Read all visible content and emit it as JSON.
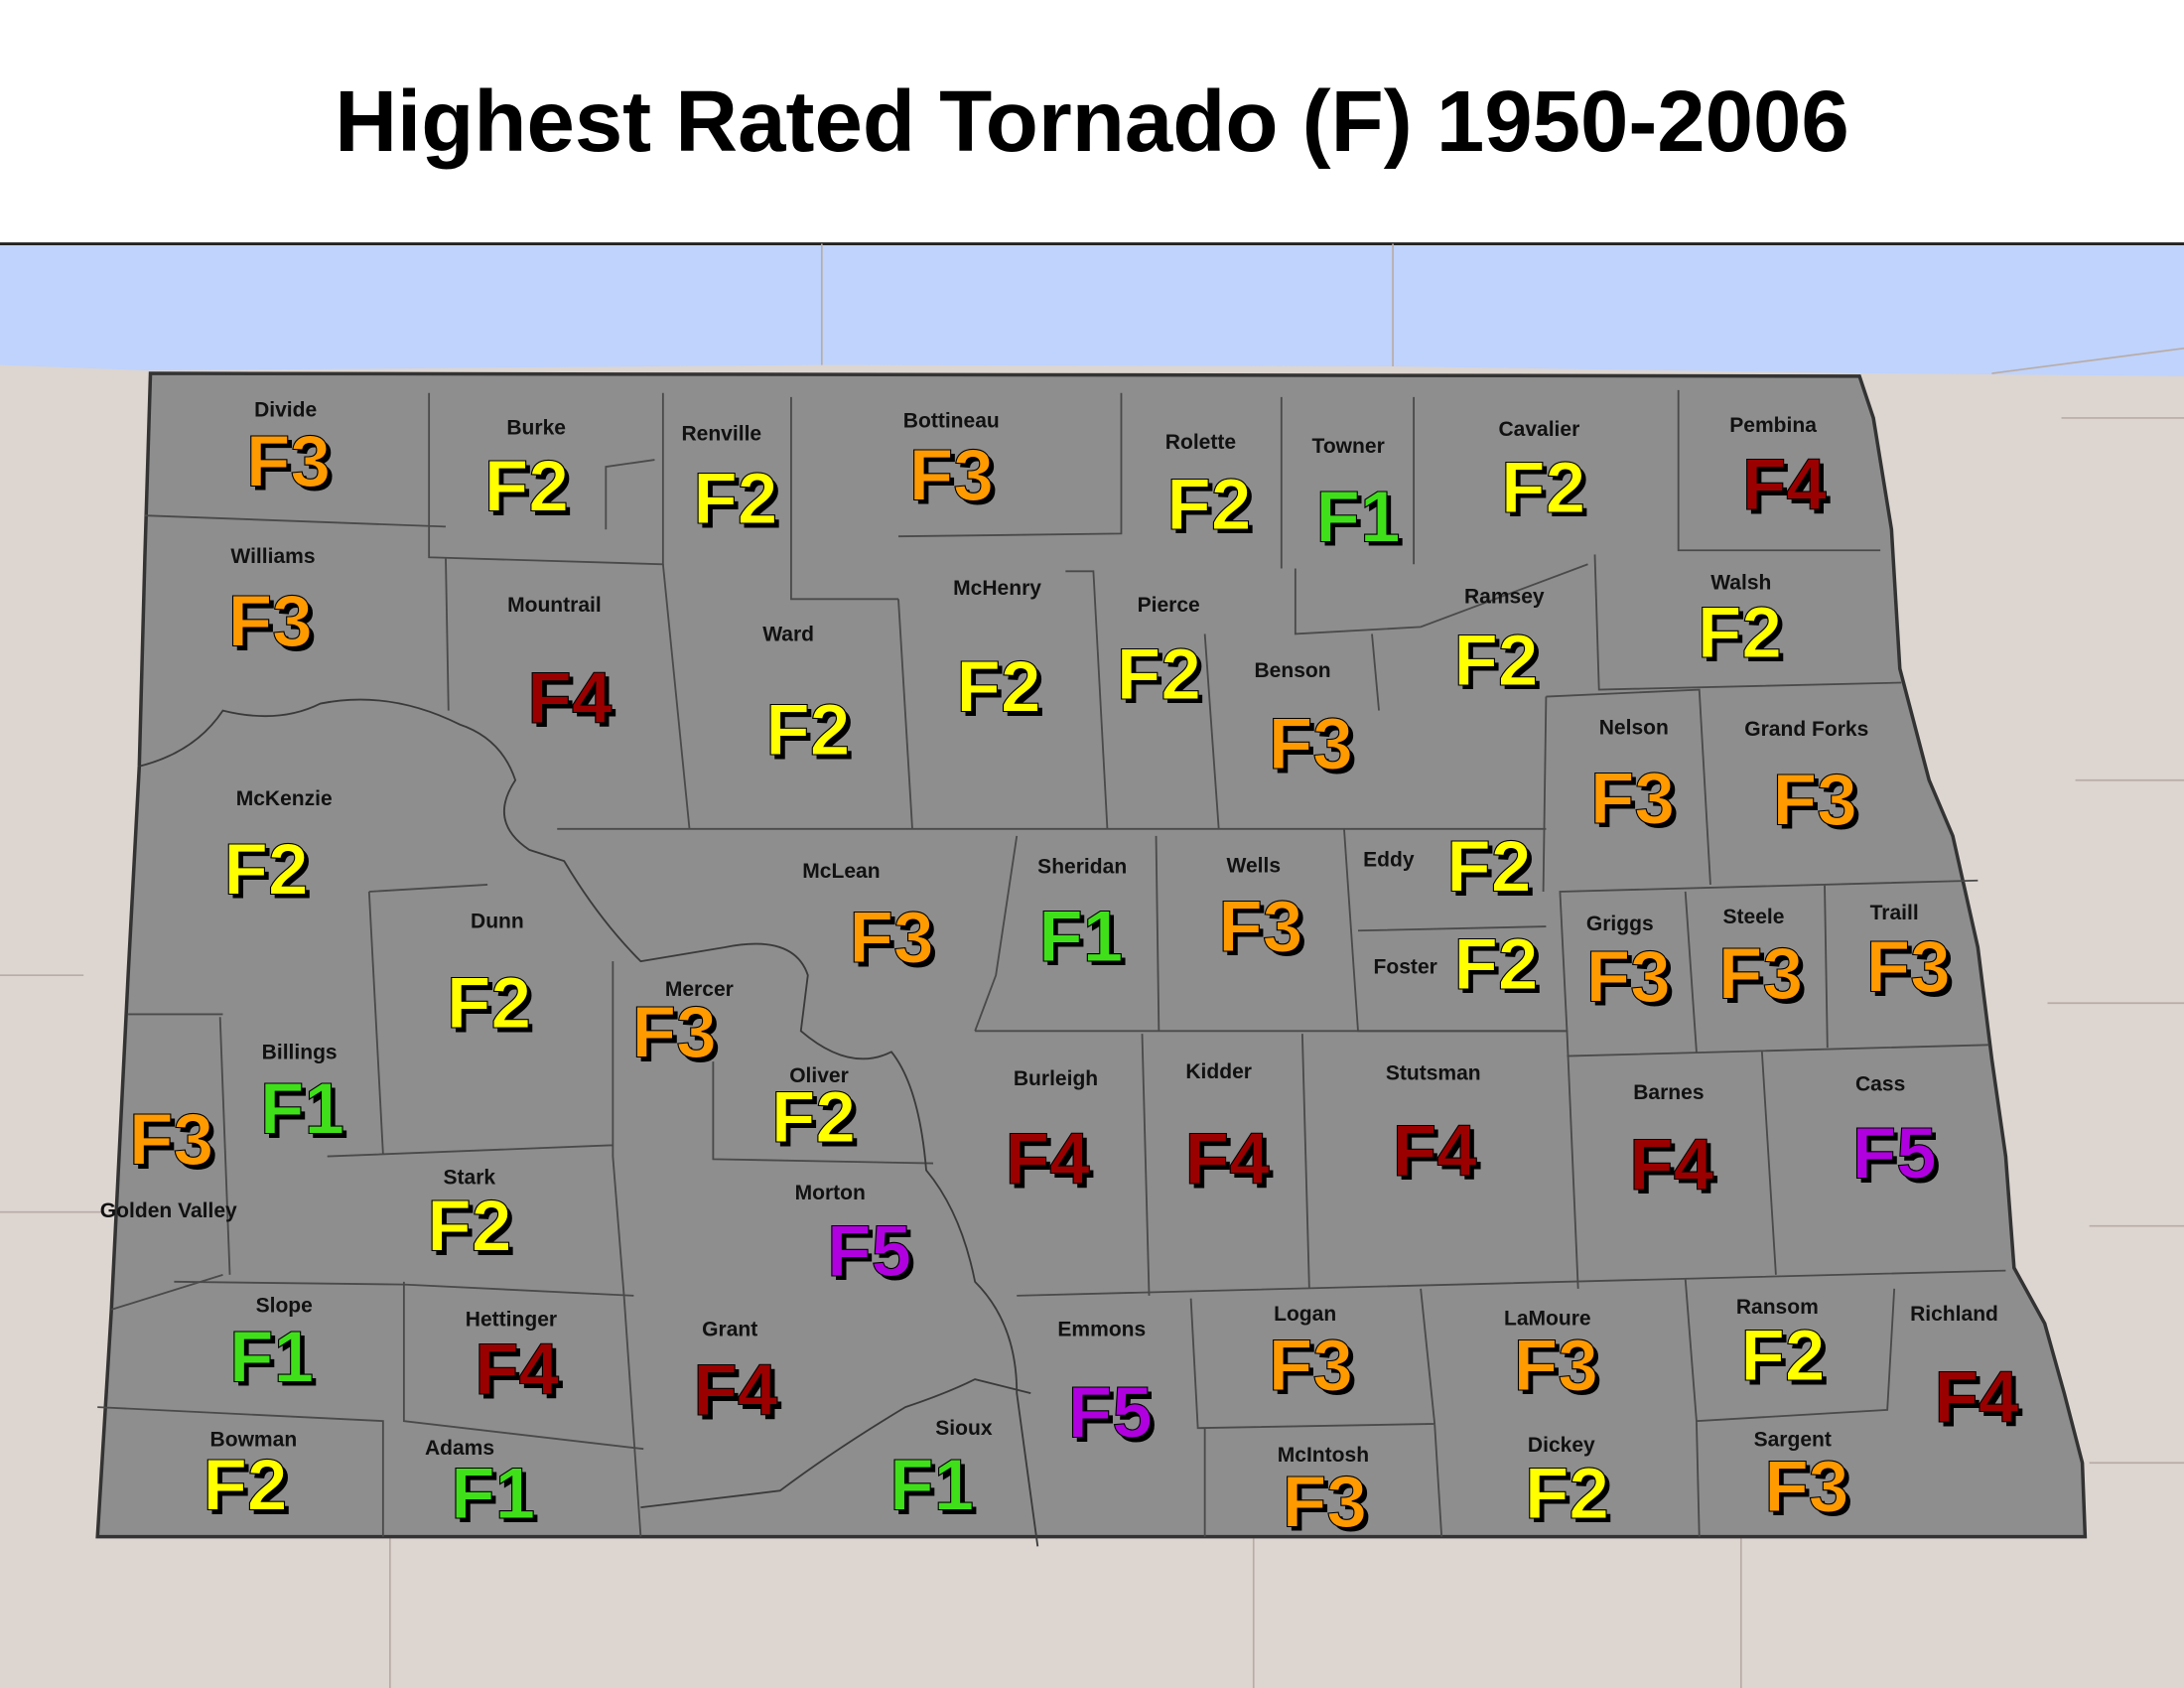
{
  "title": "Highest Rated Tornado (F) 1950-2006",
  "rating_colors": {
    "F1": "#3fe01a",
    "F2": "#ffff00",
    "F3": "#ff9a00",
    "F4": "#9a0000",
    "F5": "#b000e0"
  },
  "counties": [
    {
      "name": "Divide",
      "rating": "F3"
    },
    {
      "name": "Burke",
      "rating": "F2"
    },
    {
      "name": "Renville",
      "rating": "F2"
    },
    {
      "name": "Bottineau",
      "rating": "F3"
    },
    {
      "name": "Rolette",
      "rating": "F2"
    },
    {
      "name": "Towner",
      "rating": "F1"
    },
    {
      "name": "Cavalier",
      "rating": "F2"
    },
    {
      "name": "Pembina",
      "rating": "F4"
    },
    {
      "name": "Williams",
      "rating": "F3"
    },
    {
      "name": "Mountrail",
      "rating": "F4"
    },
    {
      "name": "Ward",
      "rating": "F2"
    },
    {
      "name": "McHenry",
      "rating": "F2"
    },
    {
      "name": "Pierce",
      "rating": "F2"
    },
    {
      "name": "Benson",
      "rating": "F3"
    },
    {
      "name": "Ramsey",
      "rating": "F2"
    },
    {
      "name": "Walsh",
      "rating": "F2"
    },
    {
      "name": "Nelson",
      "rating": "F3"
    },
    {
      "name": "Grand Forks",
      "rating": "F3"
    },
    {
      "name": "McKenzie",
      "rating": "F2"
    },
    {
      "name": "Dunn",
      "rating": "F2"
    },
    {
      "name": "McLean",
      "rating": "F3"
    },
    {
      "name": "Sheridan",
      "rating": "F1"
    },
    {
      "name": "Wells",
      "rating": "F3"
    },
    {
      "name": "Eddy",
      "rating": "F2"
    },
    {
      "name": "Foster",
      "rating": "F2"
    },
    {
      "name": "Griggs",
      "rating": "F3"
    },
    {
      "name": "Steele",
      "rating": "F3"
    },
    {
      "name": "Traill",
      "rating": "F3"
    },
    {
      "name": "Mercer",
      "rating": "F3"
    },
    {
      "name": "Billings",
      "rating": "F1"
    },
    {
      "name": "Golden Valley",
      "rating": "F3"
    },
    {
      "name": "Oliver",
      "rating": "F2"
    },
    {
      "name": "Burleigh",
      "rating": "F4"
    },
    {
      "name": "Kidder",
      "rating": "F4"
    },
    {
      "name": "Stutsman",
      "rating": "F4"
    },
    {
      "name": "Barnes",
      "rating": "F4"
    },
    {
      "name": "Cass",
      "rating": "F5"
    },
    {
      "name": "Stark",
      "rating": "F2"
    },
    {
      "name": "Morton",
      "rating": "F5"
    },
    {
      "name": "Slope",
      "rating": "F1"
    },
    {
      "name": "Hettinger",
      "rating": "F4"
    },
    {
      "name": "Grant",
      "rating": "F4"
    },
    {
      "name": "Emmons",
      "rating": "F5"
    },
    {
      "name": "Logan",
      "rating": "F3"
    },
    {
      "name": "LaMoure",
      "rating": "F3"
    },
    {
      "name": "Ransom",
      "rating": "F2"
    },
    {
      "name": "Richland",
      "rating": "F4"
    },
    {
      "name": "Bowman",
      "rating": "F2"
    },
    {
      "name": "Adams",
      "rating": "F1"
    },
    {
      "name": "Sioux",
      "rating": "F1"
    },
    {
      "name": "McIntosh",
      "rating": "F3"
    },
    {
      "name": "Dickey",
      "rating": "F2"
    },
    {
      "name": "Sargent",
      "rating": "F3"
    }
  ]
}
